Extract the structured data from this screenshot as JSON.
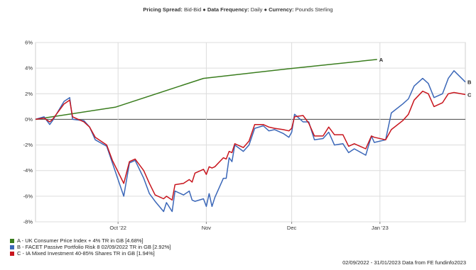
{
  "header": {
    "spread_label": "Pricing Spread:",
    "spread_value": "Bid-Bid",
    "sep1": "●",
    "frequency_label": "Data Frequency:",
    "frequency_value": "Daily",
    "sep2": "●",
    "currency_label": "Currency:",
    "currency_value": "Pounds Sterling"
  },
  "footer": {
    "text": "02/09/2022 - 31/01/2023 Data from FE fundinfo2023"
  },
  "chart_data": {
    "type": "line",
    "title": "",
    "xlabel": "",
    "ylabel": "",
    "x_range": [
      "2022-09-02",
      "2023-01-31"
    ],
    "ylim": [
      -8,
      6
    ],
    "y_ticks": [
      -8,
      -6,
      -4,
      -2,
      0,
      2,
      4,
      6
    ],
    "y_tick_labels": [
      "-8%",
      "-6%",
      "-4%",
      "-2%",
      "0%",
      "2%",
      "4%",
      "6%"
    ],
    "x_ticks": [
      "2022-10-01",
      "2022-11-01",
      "2022-12-01",
      "2023-01-01"
    ],
    "x_tick_labels": [
      "Oct '22",
      "Nov",
      "Dec",
      "Jan '23"
    ],
    "grid": true,
    "legend_position": "bottom-left",
    "series": [
      {
        "name": "A - UK Consumer Price Index + 4% TR in GB [4.68%]",
        "end_label": "A",
        "color": "#3a7d1e",
        "points": [
          [
            "2022-09-02",
            0.0
          ],
          [
            "2022-09-30",
            0.95
          ],
          [
            "2022-10-31",
            3.2
          ],
          [
            "2022-11-30",
            3.95
          ],
          [
            "2022-12-31",
            4.68
          ]
        ]
      },
      {
        "name": "B - FACET Passive Portfolio Risk 8 02/09/2022 TR in GB [2.92%]",
        "end_label": "B",
        "color": "#3b67b8",
        "points": [
          [
            "2022-09-02",
            0.0
          ],
          [
            "2022-09-05",
            0.2
          ],
          [
            "2022-09-07",
            -0.4
          ],
          [
            "2022-09-08",
            -0.1
          ],
          [
            "2022-09-12",
            1.4
          ],
          [
            "2022-09-14",
            1.7
          ],
          [
            "2022-09-15",
            0.0
          ],
          [
            "2022-09-19",
            -0.1
          ],
          [
            "2022-09-21",
            -0.6
          ],
          [
            "2022-09-23",
            -1.6
          ],
          [
            "2022-09-27",
            -2.1
          ],
          [
            "2022-09-29",
            -3.4
          ],
          [
            "2022-10-03",
            -6.0
          ],
          [
            "2022-10-05",
            -3.4
          ],
          [
            "2022-10-07",
            -3.2
          ],
          [
            "2022-10-10",
            -4.6
          ],
          [
            "2022-10-12",
            -5.8
          ],
          [
            "2022-10-14",
            -6.4
          ],
          [
            "2022-10-17",
            -7.2
          ],
          [
            "2022-10-18",
            -6.5
          ],
          [
            "2022-10-20",
            -7.2
          ],
          [
            "2022-10-21",
            -5.6
          ],
          [
            "2022-10-24",
            -5.9
          ],
          [
            "2022-10-26",
            -5.6
          ],
          [
            "2022-10-27",
            -6.3
          ],
          [
            "2022-10-28",
            -6.4
          ],
          [
            "2022-10-31",
            -6.2
          ],
          [
            "2022-11-01",
            -6.8
          ],
          [
            "2022-11-02",
            -5.8
          ],
          [
            "2022-11-03",
            -6.8
          ],
          [
            "2022-11-04",
            -6.1
          ],
          [
            "2022-11-07",
            -4.6
          ],
          [
            "2022-11-08",
            -4.6
          ],
          [
            "2022-11-09",
            -3.0
          ],
          [
            "2022-11-10",
            -3.3
          ],
          [
            "2022-11-11",
            -2.0
          ],
          [
            "2022-11-14",
            -2.5
          ],
          [
            "2022-11-16",
            -2.0
          ],
          [
            "2022-11-18",
            -0.7
          ],
          [
            "2022-11-21",
            -0.5
          ],
          [
            "2022-11-23",
            -0.9
          ],
          [
            "2022-11-25",
            -0.8
          ],
          [
            "2022-11-28",
            -1.1
          ],
          [
            "2022-11-30",
            -1.4
          ],
          [
            "2022-12-01",
            -1.0
          ],
          [
            "2022-12-02",
            0.4
          ],
          [
            "2022-12-05",
            -0.2
          ],
          [
            "2022-12-07",
            -0.2
          ],
          [
            "2022-12-09",
            -1.6
          ],
          [
            "2022-12-12",
            -1.5
          ],
          [
            "2022-12-14",
            -1.0
          ],
          [
            "2022-12-16",
            -2.0
          ],
          [
            "2022-12-19",
            -1.9
          ],
          [
            "2022-12-21",
            -2.6
          ],
          [
            "2022-12-23",
            -2.3
          ],
          [
            "2022-12-27",
            -2.8
          ],
          [
            "2022-12-29",
            -1.3
          ],
          [
            "2022-12-30",
            -1.8
          ],
          [
            "2023-01-03",
            -1.6
          ],
          [
            "2023-01-05",
            0.5
          ],
          [
            "2023-01-09",
            1.2
          ],
          [
            "2023-01-11",
            1.6
          ],
          [
            "2023-01-13",
            2.6
          ],
          [
            "2023-01-16",
            3.2
          ],
          [
            "2023-01-18",
            2.8
          ],
          [
            "2023-01-20",
            1.7
          ],
          [
            "2023-01-23",
            2.0
          ],
          [
            "2023-01-25",
            3.2
          ],
          [
            "2023-01-27",
            3.8
          ],
          [
            "2023-01-31",
            2.92
          ]
        ]
      },
      {
        "name": "C - IA Mixed Investment 40-85% Shares TR in GB [1.94%]",
        "end_label": "C",
        "color": "#c8151d",
        "points": [
          [
            "2022-09-02",
            0.0
          ],
          [
            "2022-09-05",
            0.1
          ],
          [
            "2022-09-07",
            -0.2
          ],
          [
            "2022-09-08",
            0.0
          ],
          [
            "2022-09-12",
            1.2
          ],
          [
            "2022-09-14",
            1.5
          ],
          [
            "2022-09-15",
            0.2
          ],
          [
            "2022-09-19",
            -0.2
          ],
          [
            "2022-09-21",
            -0.6
          ],
          [
            "2022-09-23",
            -1.4
          ],
          [
            "2022-09-27",
            -2.0
          ],
          [
            "2022-09-29",
            -3.2
          ],
          [
            "2022-10-03",
            -5.0
          ],
          [
            "2022-10-05",
            -3.3
          ],
          [
            "2022-10-07",
            -3.1
          ],
          [
            "2022-10-10",
            -4.0
          ],
          [
            "2022-10-12",
            -5.0
          ],
          [
            "2022-10-14",
            -5.9
          ],
          [
            "2022-10-17",
            -6.2
          ],
          [
            "2022-10-18",
            -6.0
          ],
          [
            "2022-10-20",
            -6.3
          ],
          [
            "2022-10-21",
            -5.1
          ],
          [
            "2022-10-24",
            -5.0
          ],
          [
            "2022-10-26",
            -4.7
          ],
          [
            "2022-10-27",
            -4.9
          ],
          [
            "2022-10-28",
            -4.2
          ],
          [
            "2022-10-31",
            -3.9
          ],
          [
            "2022-11-01",
            -4.3
          ],
          [
            "2022-11-02",
            -3.7
          ],
          [
            "2022-11-03",
            -3.8
          ],
          [
            "2022-11-04",
            -3.7
          ],
          [
            "2022-11-07",
            -3.0
          ],
          [
            "2022-11-08",
            -3.1
          ],
          [
            "2022-11-09",
            -2.5
          ],
          [
            "2022-11-10",
            -2.6
          ],
          [
            "2022-11-11",
            -1.9
          ],
          [
            "2022-11-14",
            -2.2
          ],
          [
            "2022-11-16",
            -1.7
          ],
          [
            "2022-11-18",
            -0.4
          ],
          [
            "2022-11-21",
            -0.4
          ],
          [
            "2022-11-23",
            -0.6
          ],
          [
            "2022-11-25",
            -0.7
          ],
          [
            "2022-11-28",
            -0.8
          ],
          [
            "2022-11-30",
            -0.9
          ],
          [
            "2022-12-01",
            -0.7
          ],
          [
            "2022-12-02",
            0.2
          ],
          [
            "2022-12-05",
            0.3
          ],
          [
            "2022-12-07",
            -0.3
          ],
          [
            "2022-12-09",
            -1.3
          ],
          [
            "2022-12-12",
            -1.3
          ],
          [
            "2022-12-14",
            -0.6
          ],
          [
            "2022-12-16",
            -1.2
          ],
          [
            "2022-12-19",
            -1.2
          ],
          [
            "2022-12-21",
            -2.1
          ],
          [
            "2022-12-23",
            -1.9
          ],
          [
            "2022-12-27",
            -2.3
          ],
          [
            "2022-12-29",
            -1.3
          ],
          [
            "2022-12-30",
            -1.4
          ],
          [
            "2023-01-03",
            -1.6
          ],
          [
            "2023-01-05",
            -0.8
          ],
          [
            "2023-01-09",
            -0.1
          ],
          [
            "2023-01-11",
            0.4
          ],
          [
            "2023-01-13",
            1.5
          ],
          [
            "2023-01-16",
            2.2
          ],
          [
            "2023-01-18",
            2.0
          ],
          [
            "2023-01-20",
            1.0
          ],
          [
            "2023-01-23",
            1.3
          ],
          [
            "2023-01-25",
            2.0
          ],
          [
            "2023-01-27",
            2.1
          ],
          [
            "2023-01-31",
            1.94
          ]
        ]
      }
    ]
  }
}
